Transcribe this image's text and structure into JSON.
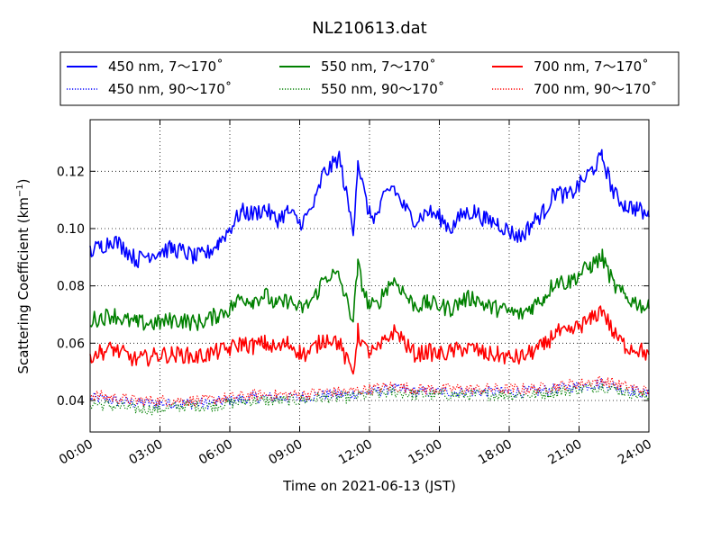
{
  "chart_data": {
    "type": "line",
    "title": "NL210613.dat",
    "xlabel": "Time on 2021-06-13 (JST)",
    "ylabel": "Scattering Coefficient (km",
    "ylabel_sup": "−1",
    "ylabel_close": ")",
    "xlim": [
      0,
      24
    ],
    "ylim": [
      0.029,
      0.138
    ],
    "x_ticks": [
      0,
      3,
      6,
      9,
      12,
      15,
      18,
      21,
      24
    ],
    "x_tick_labels": [
      "00:00",
      "03:00",
      "06:00",
      "09:00",
      "12:00",
      "15:00",
      "18:00",
      "21:00",
      "24:00"
    ],
    "y_ticks": [
      0.04,
      0.06,
      0.08,
      0.1,
      0.12
    ],
    "y_tick_labels": [
      "0.04",
      "0.06",
      "0.08",
      "0.10",
      "0.12"
    ],
    "grid": true,
    "legend_position": "top, outside plot, 3 columns",
    "series": [
      {
        "name": "450 nm, 7～170˚",
        "color": "#0000ff",
        "style": "solid",
        "x": [
          0,
          0.5,
          1,
          1.5,
          2,
          2.5,
          3,
          3.5,
          4,
          4.5,
          5,
          5.5,
          6,
          6.5,
          7,
          7.5,
          8,
          8.5,
          9,
          9.3,
          9.7,
          10,
          10.3,
          10.7,
          11,
          11.3,
          11.5,
          11.8,
          12,
          12.3,
          12.7,
          13,
          13.3,
          13.7,
          14,
          14.5,
          15,
          15.5,
          16,
          16.5,
          17,
          17.5,
          18,
          18.5,
          19,
          19.5,
          20,
          20.5,
          21,
          21.5,
          22,
          22.5,
          23,
          23.5,
          24
        ],
        "y": [
          0.092,
          0.094,
          0.096,
          0.093,
          0.089,
          0.091,
          0.092,
          0.093,
          0.092,
          0.09,
          0.091,
          0.095,
          0.1,
          0.106,
          0.105,
          0.107,
          0.103,
          0.106,
          0.102,
          0.104,
          0.11,
          0.119,
          0.121,
          0.125,
          0.112,
          0.099,
          0.124,
          0.111,
          0.105,
          0.104,
          0.112,
          0.115,
          0.11,
          0.105,
          0.103,
          0.106,
          0.104,
          0.1,
          0.105,
          0.106,
          0.103,
          0.102,
          0.099,
          0.097,
          0.102,
          0.106,
          0.113,
          0.111,
          0.115,
          0.12,
          0.125,
          0.112,
          0.108,
          0.107,
          0.104
        ]
      },
      {
        "name": "550 nm, 7～170˚",
        "color": "#008000",
        "style": "solid",
        "x": [
          0,
          0.5,
          1,
          1.5,
          2,
          2.5,
          3,
          3.5,
          4,
          4.5,
          5,
          5.5,
          6,
          6.5,
          7,
          7.5,
          8,
          8.5,
          9,
          9.3,
          9.7,
          10,
          10.3,
          10.7,
          11,
          11.3,
          11.5,
          11.8,
          12,
          12.3,
          12.7,
          13,
          13.3,
          13.7,
          14,
          14.5,
          15,
          15.5,
          16,
          16.5,
          17,
          17.5,
          18,
          18.5,
          19,
          19.5,
          20,
          20.5,
          21,
          21.5,
          22,
          22.5,
          23,
          23.5,
          24
        ],
        "y": [
          0.068,
          0.069,
          0.07,
          0.068,
          0.067,
          0.067,
          0.067,
          0.068,
          0.068,
          0.067,
          0.068,
          0.07,
          0.072,
          0.076,
          0.075,
          0.077,
          0.073,
          0.075,
          0.072,
          0.073,
          0.077,
          0.082,
          0.084,
          0.083,
          0.075,
          0.068,
          0.087,
          0.077,
          0.073,
          0.073,
          0.079,
          0.082,
          0.08,
          0.075,
          0.073,
          0.074,
          0.073,
          0.072,
          0.075,
          0.076,
          0.073,
          0.072,
          0.071,
          0.07,
          0.073,
          0.076,
          0.082,
          0.081,
          0.084,
          0.087,
          0.09,
          0.08,
          0.076,
          0.074,
          0.072
        ]
      },
      {
        "name": "700 nm, 7～170˚",
        "color": "#ff0000",
        "style": "solid",
        "x": [
          0,
          0.5,
          1,
          1.5,
          2,
          2.5,
          3,
          3.5,
          4,
          4.5,
          5,
          5.5,
          6,
          6.5,
          7,
          7.5,
          8,
          8.5,
          9,
          9.3,
          9.7,
          10,
          10.3,
          10.7,
          11,
          11.3,
          11.5,
          11.8,
          12,
          12.3,
          12.7,
          13,
          13.3,
          13.7,
          14,
          14.5,
          15,
          15.5,
          16,
          16.5,
          17,
          17.5,
          18,
          18.5,
          19,
          19.5,
          20,
          20.5,
          21,
          21.5,
          22,
          22.5,
          23,
          23.5,
          24
        ],
        "y": [
          0.056,
          0.057,
          0.058,
          0.056,
          0.054,
          0.055,
          0.056,
          0.056,
          0.056,
          0.055,
          0.056,
          0.057,
          0.058,
          0.06,
          0.059,
          0.06,
          0.058,
          0.06,
          0.057,
          0.056,
          0.059,
          0.061,
          0.062,
          0.06,
          0.054,
          0.05,
          0.064,
          0.058,
          0.057,
          0.057,
          0.061,
          0.064,
          0.063,
          0.058,
          0.056,
          0.057,
          0.056,
          0.057,
          0.058,
          0.058,
          0.056,
          0.056,
          0.055,
          0.055,
          0.057,
          0.059,
          0.064,
          0.063,
          0.066,
          0.068,
          0.072,
          0.063,
          0.059,
          0.058,
          0.056
        ]
      },
      {
        "name": "450 nm, 90～170˚",
        "color": "#0000ff",
        "style": "dotted",
        "x": [
          0,
          1,
          2,
          3,
          4,
          5,
          6,
          7,
          8,
          9,
          10,
          11,
          12,
          13,
          14,
          15,
          16,
          17,
          18,
          19,
          20,
          21,
          22,
          23,
          24
        ],
        "y": [
          0.041,
          0.04,
          0.039,
          0.039,
          0.039,
          0.039,
          0.04,
          0.041,
          0.041,
          0.041,
          0.042,
          0.042,
          0.043,
          0.044,
          0.043,
          0.043,
          0.043,
          0.043,
          0.043,
          0.043,
          0.044,
          0.045,
          0.046,
          0.044,
          0.042
        ]
      },
      {
        "name": "550 nm, 90～170˚",
        "color": "#008000",
        "style": "dotted",
        "x": [
          0,
          1,
          2,
          3,
          4,
          5,
          6,
          7,
          8,
          9,
          10,
          11,
          12,
          13,
          14,
          15,
          16,
          17,
          18,
          19,
          20,
          21,
          22,
          23,
          24
        ],
        "y": [
          0.039,
          0.038,
          0.037,
          0.037,
          0.038,
          0.038,
          0.039,
          0.04,
          0.04,
          0.04,
          0.041,
          0.041,
          0.042,
          0.043,
          0.042,
          0.042,
          0.042,
          0.042,
          0.042,
          0.042,
          0.043,
          0.044,
          0.045,
          0.043,
          0.041
        ]
      },
      {
        "name": "700 nm, 90～170˚",
        "color": "#ff0000",
        "style": "dotted",
        "x": [
          0,
          1,
          2,
          3,
          4,
          5,
          6,
          7,
          8,
          9,
          10,
          11,
          12,
          13,
          14,
          15,
          16,
          17,
          18,
          19,
          20,
          21,
          22,
          23,
          24
        ],
        "y": [
          0.042,
          0.041,
          0.04,
          0.04,
          0.04,
          0.04,
          0.041,
          0.042,
          0.042,
          0.042,
          0.043,
          0.043,
          0.044,
          0.045,
          0.044,
          0.044,
          0.044,
          0.044,
          0.044,
          0.044,
          0.045,
          0.046,
          0.047,
          0.045,
          0.043
        ]
      }
    ]
  }
}
